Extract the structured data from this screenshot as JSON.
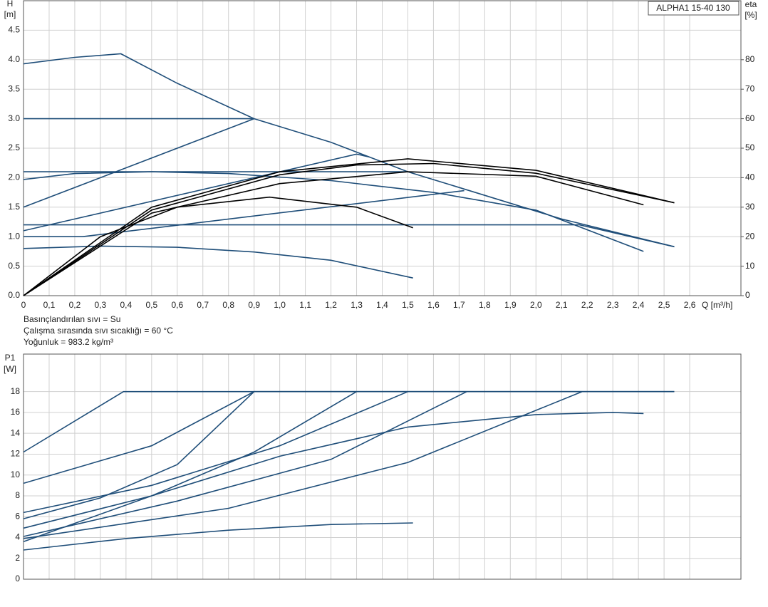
{
  "chart_data": [
    {
      "type": "line",
      "title": "ALPHA1 15-40 130",
      "ylabel": "H",
      "yunit": "[m]",
      "y2label": "eta",
      "y2unit": "[%]",
      "xlabel": "Q [m³/h]",
      "notes": [
        "Basınçlandırılan sıvı = Su",
        "Çalışma sırasında sıvı sıcaklığı = 60 °C",
        "Yoğunluk = 983.2 kg/m³"
      ],
      "xlim": [
        0,
        2.8
      ],
      "ylim": [
        0,
        5
      ],
      "y2lim": [
        0,
        100
      ],
      "grid": true,
      "xticks": [
        0,
        {
          "value": 0.1,
          "label": "0,1"
        },
        {
          "value": 0.2,
          "label": "0,2"
        },
        {
          "value": 0.3,
          "label": "0,3"
        },
        {
          "value": 0.4,
          "label": "0,4"
        },
        {
          "value": 0.5,
          "label": "0,5"
        },
        {
          "value": 0.6,
          "label": "0,6"
        },
        {
          "value": 0.7,
          "label": "0,7"
        },
        {
          "value": 0.8,
          "label": "0,8"
        },
        {
          "value": 0.9,
          "label": "0,9"
        },
        {
          "value": 1,
          "label": "1,0"
        },
        {
          "value": 1.1,
          "label": "1,1"
        },
        {
          "value": 1.2,
          "label": "1,2"
        },
        {
          "value": 1.3,
          "label": "1,3"
        },
        {
          "value": 1.4,
          "label": "1,4"
        },
        {
          "value": 1.5,
          "label": "1,5"
        },
        {
          "value": 1.6,
          "label": "1,6"
        },
        {
          "value": 1.7,
          "label": "1,7"
        },
        {
          "value": 1.8,
          "label": "1,8"
        },
        {
          "value": 1.9,
          "label": "1,9"
        },
        {
          "value": 2,
          "label": "2,0"
        },
        {
          "value": 2.1,
          "label": "2,1"
        },
        {
          "value": 2.2,
          "label": "2,2"
        },
        {
          "value": 2.3,
          "label": "2,3"
        },
        {
          "value": 2.4,
          "label": "2,4"
        },
        {
          "value": 2.5,
          "label": "2,5"
        },
        {
          "value": 2.6,
          "label": "2,6"
        }
      ],
      "yticks": [
        {
          "value": 0,
          "label": "0.0"
        },
        0.5,
        {
          "value": 1,
          "label": "1.0"
        },
        1.5,
        {
          "value": 2,
          "label": "2.0"
        },
        2.5,
        {
          "value": 3,
          "label": "3.0"
        },
        3.5,
        {
          "value": 4,
          "label": "4.0"
        },
        4.5
      ],
      "y2ticks": [
        0,
        10,
        20,
        30,
        40,
        50,
        60,
        70,
        80
      ],
      "series": [
        {
          "color": "#1f4e79",
          "x": [
            0,
            0.2,
            0.38,
            0.6,
            0.9,
            1.2,
            1.5,
            1.8,
            2.1,
            2.54
          ],
          "values": [
            3.93,
            4.04,
            4.1,
            3.6,
            3.0,
            2.6,
            2.1,
            1.7,
            1.3,
            0.83
          ]
        },
        {
          "color": "#1f4e79",
          "x": [
            0,
            0.9
          ],
          "values": [
            3.0,
            3.0
          ]
        },
        {
          "color": "#1f4e79",
          "x": [
            0,
            0.9
          ],
          "values": [
            1.5,
            3.0
          ]
        },
        {
          "color": "#1f4e79",
          "x": [
            0,
            1.5
          ],
          "values": [
            2.1,
            2.1
          ]
        },
        {
          "color": "#1f4e79",
          "x": [
            0,
            1.3,
            1.35
          ],
          "values": [
            1.1,
            2.4,
            2.35
          ]
        },
        {
          "color": "#1f4e79",
          "x": [
            0,
            0.2,
            0.5,
            0.8,
            1.2,
            1.6,
            2.0,
            2.42
          ],
          "values": [
            1.97,
            2.07,
            2.1,
            2.07,
            1.95,
            1.75,
            1.45,
            0.75
          ]
        },
        {
          "color": "#1f4e79",
          "x": [
            0,
            2.17,
            2.54
          ],
          "values": [
            1.2,
            1.2,
            0.83
          ]
        },
        {
          "color": "#1f4e79",
          "x": [
            0,
            0.23,
            1.72
          ],
          "values": [
            1.0,
            1.0,
            1.78
          ]
        },
        {
          "color": "#1f4e79",
          "x": [
            0,
            0.3,
            0.6,
            0.9,
            1.2,
            1.52
          ],
          "values": [
            0.8,
            0.84,
            0.82,
            0.74,
            0.6,
            0.3
          ]
        },
        {
          "color": "#000000",
          "axis": "y2",
          "x": [
            0,
            0.3,
            0.6,
            0.96,
            1.3,
            1.52
          ],
          "values": [
            0,
            20,
            30,
            33.4,
            30,
            23
          ]
        },
        {
          "color": "#000000",
          "axis": "y2",
          "x": [
            0,
            0.5,
            1.0,
            1.5,
            2.0,
            2.42
          ],
          "values": [
            0,
            28,
            38,
            42,
            40.5,
            30.8
          ]
        },
        {
          "color": "#000000",
          "axis": "y2",
          "x": [
            0,
            0.5,
            1.0,
            1.3,
            1.6,
            2.0,
            2.54
          ],
          "values": [
            0,
            29,
            41,
            44.3,
            44.8,
            41.5,
            31.5
          ]
        },
        {
          "color": "#000000",
          "axis": "y2",
          "x": [
            0,
            0.5,
            1.0,
            1.5,
            2.0,
            2.54
          ],
          "values": [
            0,
            30,
            42,
            46.4,
            42.5,
            31.5
          ]
        }
      ]
    },
    {
      "type": "line",
      "ylabel": "P1",
      "yunit": "[W]",
      "xlim": [
        0,
        2.8
      ],
      "ylim": [
        0,
        21.6
      ],
      "grid": true,
      "yticks": [
        0,
        2,
        4,
        6,
        8,
        10,
        12,
        14,
        16,
        18
      ],
      "series": [
        {
          "color": "#1f4e79",
          "x": [
            0,
            0.39,
            2.54
          ],
          "values": [
            12.2,
            18,
            18
          ]
        },
        {
          "color": "#1f4e79",
          "x": [
            0,
            0.5,
            0.9,
            2.54
          ],
          "values": [
            9.2,
            12.8,
            18,
            18
          ]
        },
        {
          "color": "#1f4e79",
          "x": [
            0,
            0.3,
            0.6,
            0.9
          ],
          "values": [
            5.8,
            7.8,
            11,
            18
          ]
        },
        {
          "color": "#1f4e79",
          "x": [
            0,
            0.5,
            0.9,
            1.3
          ],
          "values": [
            4.9,
            8,
            12.2,
            18
          ]
        },
        {
          "color": "#1f4e79",
          "x": [
            0,
            0.5,
            1.0,
            1.5
          ],
          "values": [
            6.4,
            9.0,
            12.8,
            18
          ]
        },
        {
          "color": "#1f4e79",
          "x": [
            0,
            0.6,
            1.2,
            1.73
          ],
          "values": [
            4.1,
            7.5,
            11.5,
            18
          ]
        },
        {
          "color": "#1f4e79",
          "x": [
            0,
            0.8,
            1.5,
            2.18
          ],
          "values": [
            3.9,
            6.8,
            11.2,
            18
          ]
        },
        {
          "color": "#1f4e79",
          "x": [
            0,
            0.5,
            1.0,
            1.5,
            2.0,
            2.3,
            2.42
          ],
          "values": [
            3.6,
            8,
            11.8,
            14.6,
            15.8,
            16,
            15.9
          ]
        },
        {
          "color": "#1f4e79",
          "x": [
            0,
            0.4,
            0.8,
            1.2,
            1.52
          ],
          "values": [
            2.8,
            3.9,
            4.7,
            5.25,
            5.4
          ]
        }
      ]
    }
  ]
}
